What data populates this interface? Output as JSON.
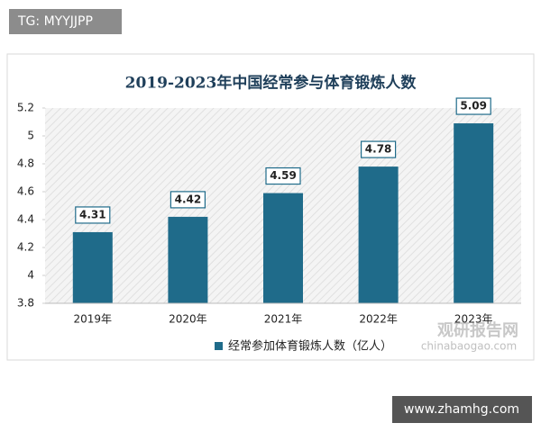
{
  "tag": "TG: MYYJJPP",
  "chart_data": {
    "type": "bar",
    "title": "2019-2023年中国经常参与体育锻炼人数",
    "categories": [
      "2019年",
      "2020年",
      "2021年",
      "2022年",
      "2023年"
    ],
    "series": [
      {
        "name": "经常参加体育锻炼人数（亿人）",
        "color": "#1f6b8a",
        "values": [
          4.31,
          4.42,
          4.59,
          4.78,
          5.09
        ]
      }
    ],
    "ylim": [
      3.8,
      5.2
    ],
    "yticks": [
      3.8,
      4,
      4.2,
      4.4,
      4.6,
      4.8,
      5,
      5.2
    ],
    "legend": "bottom"
  },
  "watermark": {
    "brand": "观研报告网",
    "url": "chinabaogao.com"
  },
  "footer": "www.zhamhg.com"
}
